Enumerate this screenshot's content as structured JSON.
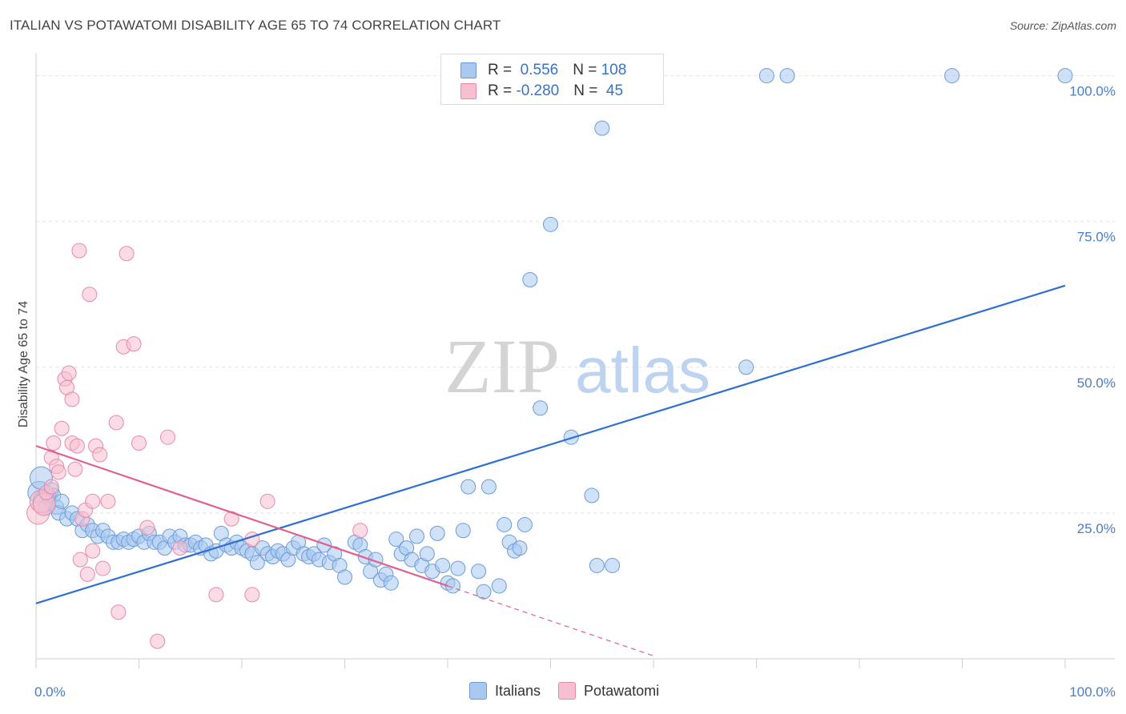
{
  "title": "ITALIAN VS POTAWATOMI DISABILITY AGE 65 TO 74 CORRELATION CHART",
  "source": "Source: ZipAtlas.com",
  "watermark": {
    "zip": "ZIP",
    "atlas": "atlas"
  },
  "legend": {
    "rows": [
      {
        "r_label": "R = ",
        "r_value": " 0.556",
        "n_label": "N = ",
        "n_value": "108",
        "color": "#a8c8f0",
        "border": "#6c9ad8"
      },
      {
        "r_label": "R = ",
        "r_value": "-0.280",
        "n_label": "N = ",
        "n_value": " 45",
        "color": "#f7bfd0",
        "border": "#e58aa8"
      }
    ]
  },
  "bottom_legend": [
    {
      "label": "Italians",
      "color": "#a8c8f0",
      "border": "#6c9ad8"
    },
    {
      "label": "Potawatomi",
      "color": "#f7bfd0",
      "border": "#e58aa8"
    }
  ],
  "chart_data": {
    "type": "scatter",
    "title": "ITALIAN VS POTAWATOMI DISABILITY AGE 65 TO 74 CORRELATION CHART",
    "xlabel": "",
    "ylabel": "Disability Age 65 to 74",
    "xlim": [
      0,
      100
    ],
    "ylim": [
      0,
      102
    ],
    "x_tick_labels": [
      {
        "value": 0,
        "label": "0.0%"
      },
      {
        "value": 100,
        "label": "100.0%"
      }
    ],
    "y_tick_labels": [
      {
        "value": 25,
        "label": "25.0%"
      },
      {
        "value": 50,
        "label": "50.0%"
      },
      {
        "value": 75,
        "label": "75.0%"
      },
      {
        "value": 100,
        "label": "100.0%"
      }
    ],
    "grid": true,
    "series": [
      {
        "name": "Italians",
        "color": "#a8c8f0",
        "stroke": "#6c9ad8",
        "trend": {
          "x": [
            0,
            100
          ],
          "y": [
            9.5,
            64
          ],
          "color": "#2e6fcf"
        },
        "points": [
          [
            0.3,
            28.5
          ],
          [
            0.5,
            31
          ],
          [
            0.8,
            27
          ],
          [
            1.0,
            26
          ],
          [
            1.2,
            28
          ],
          [
            1.5,
            29
          ],
          [
            1.7,
            28
          ],
          [
            2,
            26
          ],
          [
            2.2,
            25
          ],
          [
            2.5,
            27
          ],
          [
            3,
            24
          ],
          [
            3.5,
            25
          ],
          [
            4,
            24
          ],
          [
            4.5,
            22
          ],
          [
            5,
            23
          ],
          [
            5.5,
            22
          ],
          [
            6,
            21
          ],
          [
            6.5,
            22
          ],
          [
            7,
            21
          ],
          [
            7.5,
            20
          ],
          [
            8,
            20
          ],
          [
            8.5,
            20.5
          ],
          [
            9,
            20
          ],
          [
            9.5,
            20.5
          ],
          [
            10,
            21
          ],
          [
            10.5,
            20
          ],
          [
            11,
            21.5
          ],
          [
            11.5,
            20
          ],
          [
            12,
            20
          ],
          [
            12.5,
            19
          ],
          [
            13,
            21
          ],
          [
            13.5,
            20
          ],
          [
            14,
            21
          ],
          [
            14.5,
            19.5
          ],
          [
            15,
            19.5
          ],
          [
            15.5,
            20
          ],
          [
            16,
            19
          ],
          [
            16.5,
            19.5
          ],
          [
            17,
            18
          ],
          [
            17.5,
            18.5
          ],
          [
            18,
            21.5
          ],
          [
            18.5,
            19.5
          ],
          [
            19,
            19
          ],
          [
            19.5,
            20
          ],
          [
            20,
            19
          ],
          [
            20.5,
            18.5
          ],
          [
            21,
            18
          ],
          [
            21.5,
            16.5
          ],
          [
            22,
            19
          ],
          [
            22.5,
            18
          ],
          [
            23,
            17.5
          ],
          [
            23.5,
            18.5
          ],
          [
            24,
            18
          ],
          [
            24.5,
            17
          ],
          [
            25,
            19
          ],
          [
            25.5,
            20
          ],
          [
            26,
            18
          ],
          [
            26.5,
            17.5
          ],
          [
            27,
            18
          ],
          [
            27.5,
            17
          ],
          [
            28,
            19.5
          ],
          [
            28.5,
            16.5
          ],
          [
            29,
            18
          ],
          [
            29.5,
            16
          ],
          [
            30,
            14
          ],
          [
            31,
            20
          ],
          [
            31.5,
            19.5
          ],
          [
            32,
            17.5
          ],
          [
            32.5,
            15
          ],
          [
            33,
            17
          ],
          [
            33.5,
            13.5
          ],
          [
            34,
            14.5
          ],
          [
            34.5,
            13
          ],
          [
            35,
            20.5
          ],
          [
            35.5,
            18
          ],
          [
            36,
            19
          ],
          [
            36.5,
            17
          ],
          [
            37,
            21
          ],
          [
            37.5,
            16
          ],
          [
            38,
            18
          ],
          [
            38.5,
            15
          ],
          [
            39,
            21.5
          ],
          [
            39.5,
            16
          ],
          [
            40,
            13
          ],
          [
            40.5,
            12.5
          ],
          [
            41,
            15.5
          ],
          [
            41.5,
            22
          ],
          [
            42,
            29.5
          ],
          [
            43,
            15
          ],
          [
            43.5,
            11.5
          ],
          [
            44,
            29.5
          ],
          [
            45,
            12.5
          ],
          [
            45.5,
            23
          ],
          [
            46,
            20
          ],
          [
            46.5,
            18.5
          ],
          [
            47,
            19
          ],
          [
            47.5,
            23
          ],
          [
            48,
            65
          ],
          [
            49,
            43
          ],
          [
            50,
            74.5
          ],
          [
            52,
            38
          ],
          [
            54,
            28
          ],
          [
            54.5,
            16
          ],
          [
            55,
            91
          ],
          [
            56,
            16
          ],
          [
            69,
            50
          ],
          [
            71,
            100
          ],
          [
            89,
            100
          ],
          [
            100,
            100
          ],
          [
            73,
            100
          ]
        ]
      },
      {
        "name": "Potawatomi",
        "color": "#f7bfd0",
        "stroke": "#e58aa8",
        "trend": {
          "x": [
            0,
            40
          ],
          "y": [
            36.5,
            12.5
          ],
          "dash_to": [
            60,
            0.5
          ],
          "color": "#e0608e"
        },
        "points": [
          [
            0.2,
            25
          ],
          [
            0.5,
            27
          ],
          [
            0.8,
            26.5
          ],
          [
            1,
            28.5
          ],
          [
            1.5,
            29.5
          ],
          [
            1.5,
            34.5
          ],
          [
            1.7,
            37
          ],
          [
            2,
            33
          ],
          [
            2.2,
            32
          ],
          [
            2.5,
            39.5
          ],
          [
            2.8,
            48
          ],
          [
            3,
            46.5
          ],
          [
            3.2,
            49
          ],
          [
            3.5,
            44.5
          ],
          [
            3.5,
            37
          ],
          [
            3.8,
            32.5
          ],
          [
            4,
            36.5
          ],
          [
            4.2,
            70
          ],
          [
            4.3,
            17
          ],
          [
            4.5,
            24
          ],
          [
            4.8,
            25.5
          ],
          [
            5,
            14.5
          ],
          [
            5.2,
            62.5
          ],
          [
            5.5,
            27
          ],
          [
            5.5,
            18.5
          ],
          [
            5.8,
            36.5
          ],
          [
            6.2,
            35
          ],
          [
            6.5,
            15.5
          ],
          [
            7,
            27
          ],
          [
            7.8,
            40.5
          ],
          [
            8,
            8
          ],
          [
            8.5,
            53.5
          ],
          [
            8.8,
            69.5
          ],
          [
            9.5,
            54
          ],
          [
            10,
            37
          ],
          [
            10.8,
            22.5
          ],
          [
            11.8,
            3
          ],
          [
            12.8,
            38
          ],
          [
            14,
            19
          ],
          [
            17.5,
            11
          ],
          [
            19,
            24
          ],
          [
            21,
            11
          ],
          [
            21,
            20.5
          ],
          [
            22.5,
            27
          ],
          [
            31.5,
            22
          ]
        ]
      }
    ]
  }
}
